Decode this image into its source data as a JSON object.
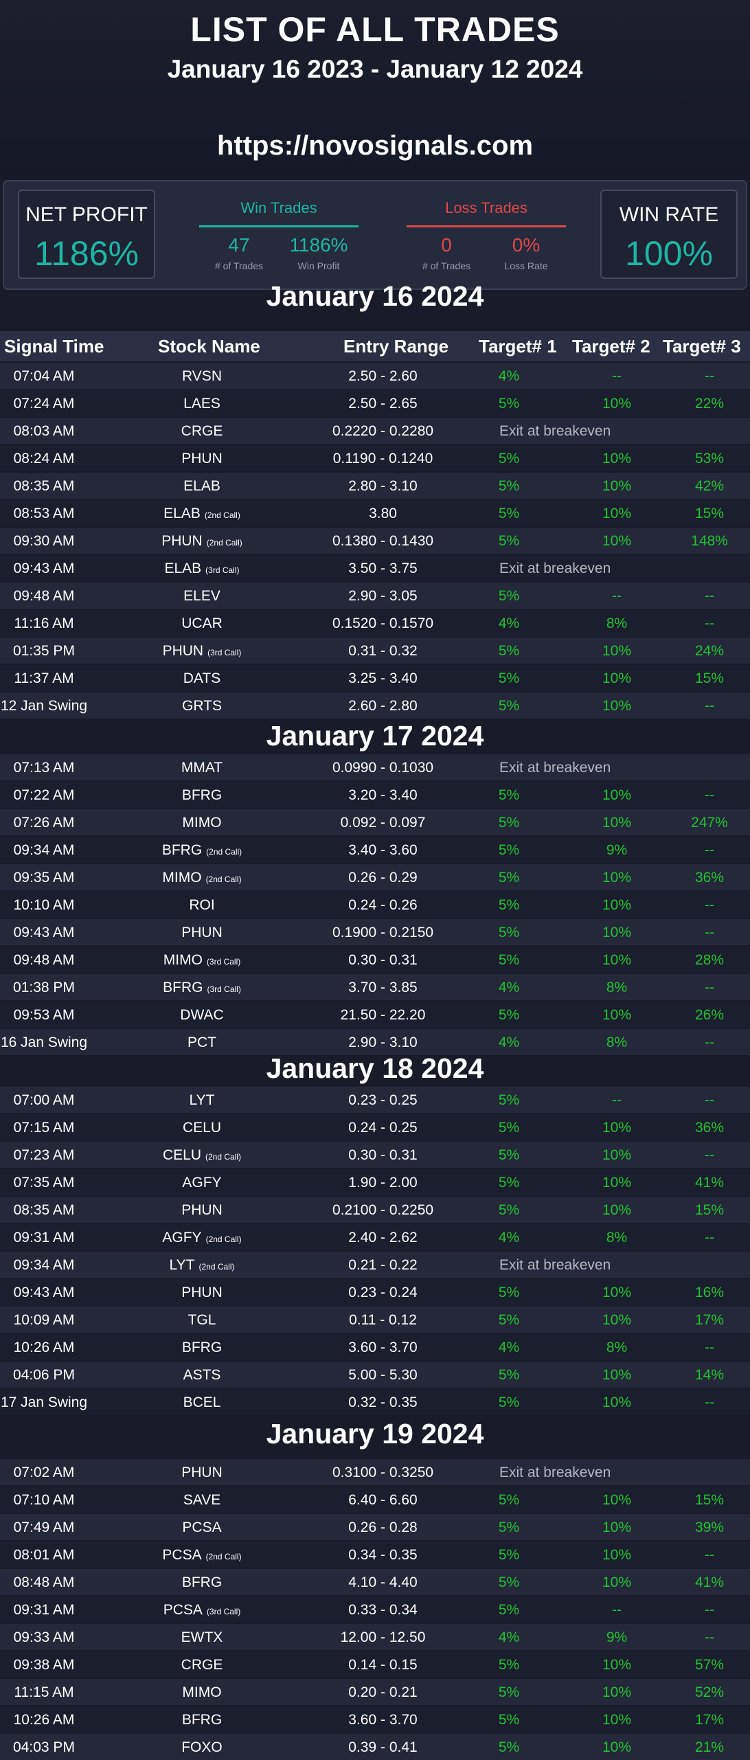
{
  "header": {
    "title": "LIST OF ALL TRADES",
    "subtitle": "January 16 2023 - January 12 2024",
    "url": "https://novosignals.com"
  },
  "stats": {
    "net_profit_label": "NET PROFIT",
    "net_profit_value": "1186%",
    "win_group": {
      "title": "Win Trades",
      "count": "47",
      "count_caption": "# of Trades",
      "profit": "1186%",
      "profit_caption": "Win Profit"
    },
    "loss_group": {
      "title": "Loss Trades",
      "count": "0",
      "count_caption": "# of Trades",
      "rate": "0%",
      "rate_caption": "Loss Rate"
    },
    "win_rate_label": "WIN RATE",
    "win_rate_value": "100%"
  },
  "columns": {
    "signal_time": "Signal Time",
    "stock_name": "Stock Name",
    "entry_range": "Entry Range",
    "target1": "Target# 1",
    "target2": "Target# 2",
    "target3": "Target# 3"
  },
  "days": [
    {
      "title": "January 16 2024",
      "rows": [
        {
          "time": "07:04 AM",
          "stock": "RVSN",
          "tag": "",
          "entry": "2.50 - 2.60",
          "t1": "4%",
          "t2": "--",
          "t3": "--",
          "note": ""
        },
        {
          "time": "07:24 AM",
          "stock": "LAES",
          "tag": "",
          "entry": "2.50 - 2.65",
          "t1": "5%",
          "t2": "10%",
          "t3": "22%",
          "note": ""
        },
        {
          "time": "08:03 AM",
          "stock": "CRGE",
          "tag": "",
          "entry": "0.2220 - 0.2280",
          "t1": "",
          "t2": "",
          "t3": "",
          "note": "Exit at breakeven"
        },
        {
          "time": "08:24 AM",
          "stock": "PHUN",
          "tag": "",
          "entry": "0.1190 - 0.1240",
          "t1": "5%",
          "t2": "10%",
          "t3": "53%",
          "note": ""
        },
        {
          "time": "08:35 AM",
          "stock": "ELAB",
          "tag": "",
          "entry": "2.80 - 3.10",
          "t1": "5%",
          "t2": "10%",
          "t3": "42%",
          "note": ""
        },
        {
          "time": "08:53 AM",
          "stock": "ELAB",
          "tag": "(2nd Call)",
          "entry": "3.80",
          "t1": "5%",
          "t2": "10%",
          "t3": "15%",
          "note": ""
        },
        {
          "time": "09:30 AM",
          "stock": "PHUN",
          "tag": "(2nd Call)",
          "entry": "0.1380 - 0.1430",
          "t1": "5%",
          "t2": "10%",
          "t3": "148%",
          "note": ""
        },
        {
          "time": "09:43 AM",
          "stock": "ELAB",
          "tag": "(3rd Call)",
          "entry": "3.50 - 3.75",
          "t1": "",
          "t2": "",
          "t3": "",
          "note": "Exit at breakeven"
        },
        {
          "time": "09:48 AM",
          "stock": "ELEV",
          "tag": "",
          "entry": "2.90 - 3.05",
          "t1": "5%",
          "t2": "--",
          "t3": "--",
          "note": ""
        },
        {
          "time": "11:16 AM",
          "stock": "UCAR",
          "tag": "",
          "entry": "0.1520 - 0.1570",
          "t1": "4%",
          "t2": "8%",
          "t3": "--",
          "note": ""
        },
        {
          "time": "01:35 PM",
          "stock": "PHUN",
          "tag": "(3rd Call)",
          "entry": "0.31 - 0.32",
          "t1": "5%",
          "t2": "10%",
          "t3": "24%",
          "note": ""
        },
        {
          "time": "11:37 AM",
          "stock": "DATS",
          "tag": "",
          "entry": "3.25 - 3.40",
          "t1": "5%",
          "t2": "10%",
          "t3": "15%",
          "note": ""
        },
        {
          "time": "12 Jan Swing",
          "stock": "GRTS",
          "tag": "",
          "entry": "2.60 - 2.80",
          "t1": "5%",
          "t2": "10%",
          "t3": "--",
          "note": ""
        }
      ]
    },
    {
      "title": "January 17 2024",
      "rows": [
        {
          "time": "07:13 AM",
          "stock": "MMAT",
          "tag": "",
          "entry": "0.0990 - 0.1030",
          "t1": "",
          "t2": "",
          "t3": "",
          "note": "Exit at breakeven"
        },
        {
          "time": "07:22 AM",
          "stock": "BFRG",
          "tag": "",
          "entry": "3.20 -  3.40",
          "t1": "5%",
          "t2": "10%",
          "t3": "--",
          "note": ""
        },
        {
          "time": "07:26 AM",
          "stock": "MIMO",
          "tag": "",
          "entry": "0.092 - 0.097",
          "t1": "5%",
          "t2": "10%",
          "t3": "247%",
          "note": ""
        },
        {
          "time": "09:34 AM",
          "stock": "BFRG",
          "tag": "(2nd Call)",
          "entry": "3.40 - 3.60",
          "t1": "5%",
          "t2": "9%",
          "t3": "--",
          "note": ""
        },
        {
          "time": "09:35 AM",
          "stock": "MIMO",
          "tag": "(2nd Call)",
          "entry": "0.26 - 0.29",
          "t1": "5%",
          "t2": "10%",
          "t3": "36%",
          "note": ""
        },
        {
          "time": "10:10 AM",
          "stock": "ROI",
          "tag": "",
          "entry": "0.24 - 0.26",
          "t1": "5%",
          "t2": "10%",
          "t3": "--",
          "note": ""
        },
        {
          "time": "09:43 AM",
          "stock": "PHUN",
          "tag": "",
          "entry": "0.1900 - 0.2150",
          "t1": "5%",
          "t2": "10%",
          "t3": "--",
          "note": ""
        },
        {
          "time": "09:48 AM",
          "stock": "MIMO",
          "tag": "(3rd Call)",
          "entry": "0.30 - 0.31",
          "t1": "5%",
          "t2": "10%",
          "t3": "28%",
          "note": ""
        },
        {
          "time": "01:38 PM",
          "stock": "BFRG",
          "tag": "(3rd Call)",
          "entry": "3.70 - 3.85",
          "t1": "4%",
          "t2": "8%",
          "t3": "--",
          "note": ""
        },
        {
          "time": "09:53 AM",
          "stock": "DWAC",
          "tag": "",
          "entry": "21.50 - 22.20",
          "t1": "5%",
          "t2": "10%",
          "t3": "26%",
          "note": ""
        },
        {
          "time": "16 Jan Swing",
          "stock": "PCT",
          "tag": "",
          "entry": "2.90 - 3.10",
          "t1": "4%",
          "t2": "8%",
          "t3": "--",
          "note": ""
        }
      ]
    },
    {
      "title": "January 18 2024",
      "rows": [
        {
          "time": "07:00 AM",
          "stock": "LYT",
          "tag": "",
          "entry": "0.23 - 0.25",
          "t1": "5%",
          "t2": "--",
          "t3": "--",
          "note": ""
        },
        {
          "time": "07:15 AM",
          "stock": "CELU",
          "tag": "",
          "entry": "0.24 - 0.25",
          "t1": "5%",
          "t2": "10%",
          "t3": "36%",
          "note": ""
        },
        {
          "time": "07:23 AM",
          "stock": "CELU",
          "tag": "(2nd Call)",
          "entry": "0.30 - 0.31",
          "t1": "5%",
          "t2": "10%",
          "t3": "--",
          "note": ""
        },
        {
          "time": "07:35 AM",
          "stock": "AGFY",
          "tag": "",
          "entry": "1.90 - 2.00",
          "t1": "5%",
          "t2": "10%",
          "t3": "41%",
          "note": ""
        },
        {
          "time": "08:35 AM",
          "stock": "PHUN",
          "tag": "",
          "entry": "0.2100 - 0.2250",
          "t1": "5%",
          "t2": "10%",
          "t3": "15%",
          "note": ""
        },
        {
          "time": "09:31 AM",
          "stock": "AGFY",
          "tag": "(2nd Call)",
          "entry": "2.40 - 2.62",
          "t1": "4%",
          "t2": "8%",
          "t3": "--",
          "note": ""
        },
        {
          "time": "09:34 AM",
          "stock": "LYT",
          "tag": "(2nd Call)",
          "entry": "0.21 - 0.22",
          "t1": "",
          "t2": "",
          "t3": "",
          "note": "Exit at breakeven"
        },
        {
          "time": "09:43 AM",
          "stock": "PHUN",
          "tag": "",
          "entry": "0.23 - 0.24",
          "t1": "5%",
          "t2": "10%",
          "t3": "16%",
          "note": ""
        },
        {
          "time": "10:09 AM",
          "stock": "TGL",
          "tag": "",
          "entry": "0.11 - 0.12",
          "t1": "5%",
          "t2": "10%",
          "t3": "17%",
          "note": ""
        },
        {
          "time": "10:26 AM",
          "stock": "BFRG",
          "tag": "",
          "entry": "3.60 - 3.70",
          "t1": "4%",
          "t2": "8%",
          "t3": "--",
          "note": ""
        },
        {
          "time": "04:06 PM",
          "stock": "ASTS",
          "tag": "",
          "entry": "5.00 - 5.30",
          "t1": "5%",
          "t2": "10%",
          "t3": "14%",
          "note": ""
        },
        {
          "time": "17 Jan Swing",
          "stock": "BCEL",
          "tag": "",
          "entry": "0.32 - 0.35",
          "t1": "5%",
          "t2": "10%",
          "t3": "--",
          "note": ""
        }
      ]
    },
    {
      "title": "January 19 2024",
      "rows": [
        {
          "time": "07:02 AM",
          "stock": "PHUN",
          "tag": "",
          "entry": "0.3100 - 0.3250",
          "t1": "",
          "t2": "",
          "t3": "",
          "note": "Exit at breakeven"
        },
        {
          "time": "07:10 AM",
          "stock": "SAVE",
          "tag": "",
          "entry": "6.40 - 6.60",
          "t1": "5%",
          "t2": "10%",
          "t3": "15%",
          "note": ""
        },
        {
          "time": "07:49 AM",
          "stock": "PCSA",
          "tag": "",
          "entry": "0.26 - 0.28",
          "t1": "5%",
          "t2": "10%",
          "t3": "39%",
          "note": ""
        },
        {
          "time": "08:01 AM",
          "stock": "PCSA",
          "tag": "(2nd Call)",
          "entry": "0.34 - 0.35",
          "t1": "5%",
          "t2": "10%",
          "t3": "--",
          "note": ""
        },
        {
          "time": "08:48 AM",
          "stock": "BFRG",
          "tag": "",
          "entry": "4.10 - 4.40",
          "t1": "5%",
          "t2": "10%",
          "t3": "41%",
          "note": ""
        },
        {
          "time": "09:31 AM",
          "stock": "PCSA",
          "tag": "(3rd Call)",
          "entry": "0.33 - 0.34",
          "t1": "5%",
          "t2": "--",
          "t3": "--",
          "note": ""
        },
        {
          "time": "09:33 AM",
          "stock": "EWTX",
          "tag": "",
          "entry": "12.00 - 12.50",
          "t1": "4%",
          "t2": "9%",
          "t3": "--",
          "note": ""
        },
        {
          "time": "09:38 AM",
          "stock": "CRGE",
          "tag": "",
          "entry": "0.14 - 0.15",
          "t1": "5%",
          "t2": "10%",
          "t3": "57%",
          "note": ""
        },
        {
          "time": "11:15 AM",
          "stock": "MIMO",
          "tag": "",
          "entry": "0.20 - 0.21",
          "t1": "5%",
          "t2": "10%",
          "t3": "52%",
          "note": ""
        },
        {
          "time": "10:26 AM",
          "stock": "BFRG",
          "tag": "",
          "entry": "3.60 - 3.70",
          "t1": "5%",
          "t2": "10%",
          "t3": "17%",
          "note": ""
        },
        {
          "time": "04:03 PM",
          "stock": "FOXO",
          "tag": "",
          "entry": "0.39 - 0.41",
          "t1": "5%",
          "t2": "10%",
          "t3": "21%",
          "note": ""
        }
      ]
    }
  ]
}
